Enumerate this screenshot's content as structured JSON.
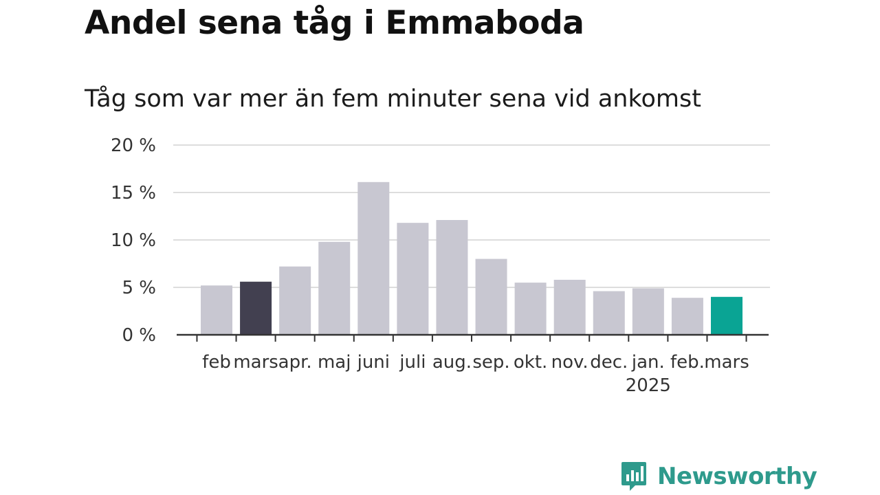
{
  "title": "Andel sena tåg i Emmaboda",
  "subtitle": "Tåg som var mer än fem minuter sena vid ankomst",
  "logo": {
    "text": "Newsworthy",
    "color": "#2e9a8c"
  },
  "colors": {
    "default_bar": "#c8c7d1",
    "highlight_prev": "#424050",
    "highlight_current": "#0aa494",
    "grid": "#dddddd",
    "axis": "#333333"
  },
  "chart_data": {
    "type": "bar",
    "categories": [
      "feb",
      "mars",
      "apr.",
      "maj",
      "juni",
      "juli",
      "aug.",
      "sep.",
      "okt.",
      "nov.",
      "dec.",
      "jan.",
      "feb.",
      "mars"
    ],
    "year_label": {
      "text": "2025",
      "under_category_index": 11
    },
    "values": [
      5.2,
      5.6,
      7.2,
      9.8,
      16.1,
      11.8,
      12.1,
      8.0,
      5.5,
      5.8,
      4.6,
      4.9,
      3.9,
      4.0
    ],
    "bar_colors": [
      "default",
      "highlight_prev",
      "default",
      "default",
      "default",
      "default",
      "default",
      "default",
      "default",
      "default",
      "default",
      "default",
      "default",
      "highlight_current"
    ],
    "ylim": [
      0,
      20
    ],
    "yticks": [
      0,
      5,
      10,
      15,
      20
    ],
    "ytick_labels": [
      "0 %",
      "5 %",
      "10 %",
      "15 %",
      "20 %"
    ],
    "xlabel": "",
    "ylabel": "",
    "grid": true
  }
}
